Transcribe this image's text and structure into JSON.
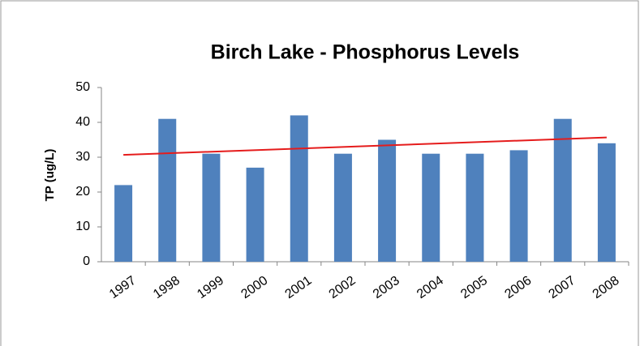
{
  "chart_data": {
    "type": "bar",
    "title": "Birch Lake - Phosphorus Levels",
    "y_label": "TP (ug/L)",
    "categories": [
      "1997",
      "1998",
      "1999",
      "2000",
      "2001",
      "2002",
      "2003",
      "2004",
      "2005",
      "2006",
      "2007",
      "2008"
    ],
    "values": [
      22,
      41,
      31,
      27,
      42,
      31,
      35,
      31,
      31,
      32,
      41,
      34
    ],
    "color": "#4f81bd",
    "trendline": "linear",
    "trendline_color": "#e51c1c",
    "ylim": [
      0,
      50
    ],
    "yticks": [
      0,
      10,
      20,
      30,
      40,
      50
    ],
    "grid": false
  }
}
